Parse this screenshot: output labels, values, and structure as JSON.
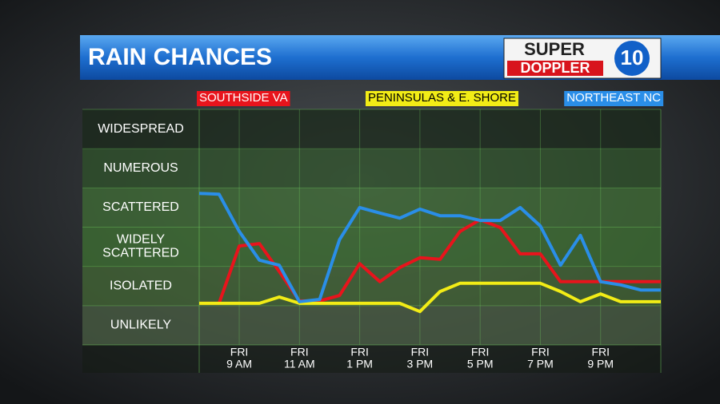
{
  "header": {
    "logo_top": "SUPER",
    "logo_bottom": "DOPPLER",
    "logo_number": "10"
  },
  "chart_data": {
    "type": "line",
    "title": "RAIN CHANCES",
    "x": [
      7.67,
      8.33,
      9,
      9.67,
      10.33,
      11,
      11.67,
      12.33,
      13,
      13.67,
      14.33,
      15,
      15.67,
      16.33,
      17,
      17.67,
      18.33,
      19,
      19.67,
      20.33,
      21,
      21.67,
      22.33,
      23
    ],
    "xlim": [
      7.67,
      23
    ],
    "xticks": [
      {
        "value": 9,
        "label": "FRI\n9 AM"
      },
      {
        "value": 11,
        "label": "FRI\n11 AM"
      },
      {
        "value": 13,
        "label": "FRI\n1 PM"
      },
      {
        "value": 15,
        "label": "FRI\n3 PM"
      },
      {
        "value": 17,
        "label": "FRI\n5 PM"
      },
      {
        "value": 19,
        "label": "FRI\n7 PM"
      },
      {
        "value": 21,
        "label": "FRI\n9 PM"
      }
    ],
    "ylim": [
      0,
      6
    ],
    "yticks": [
      {
        "value": 0.5,
        "label": "UNLIKELY"
      },
      {
        "value": 1.5,
        "label": "ISOLATED"
      },
      {
        "value": 2.5,
        "label": "WIDELY\nSCATTERED"
      },
      {
        "value": 3.5,
        "label": "SCATTERED"
      },
      {
        "value": 4.5,
        "label": "NUMEROUS"
      },
      {
        "value": 5.5,
        "label": "WIDESPREAD"
      }
    ],
    "grid": true,
    "series": [
      {
        "name": "SOUTHSIDE VA",
        "color": "#e8141c",
        "text_color": "#ffffff",
        "values": [
          1.06,
          1.06,
          2.52,
          2.58,
          1.87,
          1.12,
          1.12,
          1.26,
          2.07,
          1.61,
          1.97,
          2.22,
          2.18,
          2.89,
          3.19,
          2.99,
          2.32,
          2.32,
          1.61,
          1.61,
          1.61,
          1.61,
          1.61,
          1.61
        ]
      },
      {
        "name": "PENINSULAS & E. SHORE",
        "color": "#f2ec16",
        "text_color": "#000000",
        "values": [
          1.06,
          1.06,
          1.06,
          1.06,
          1.22,
          1.06,
          1.06,
          1.06,
          1.06,
          1.06,
          1.06,
          0.85,
          1.36,
          1.57,
          1.57,
          1.57,
          1.57,
          1.57,
          1.36,
          1.1,
          1.3,
          1.1,
          1.1,
          1.1
        ]
      },
      {
        "name": "NORTHEAST NC",
        "color": "#2a8ee8",
        "text_color": "#ffffff",
        "values": [
          3.86,
          3.84,
          2.89,
          2.16,
          2.03,
          1.1,
          1.16,
          2.68,
          3.5,
          3.36,
          3.23,
          3.46,
          3.29,
          3.29,
          3.17,
          3.17,
          3.5,
          3.03,
          2.03,
          2.79,
          1.61,
          1.53,
          1.4,
          1.4
        ]
      }
    ]
  }
}
